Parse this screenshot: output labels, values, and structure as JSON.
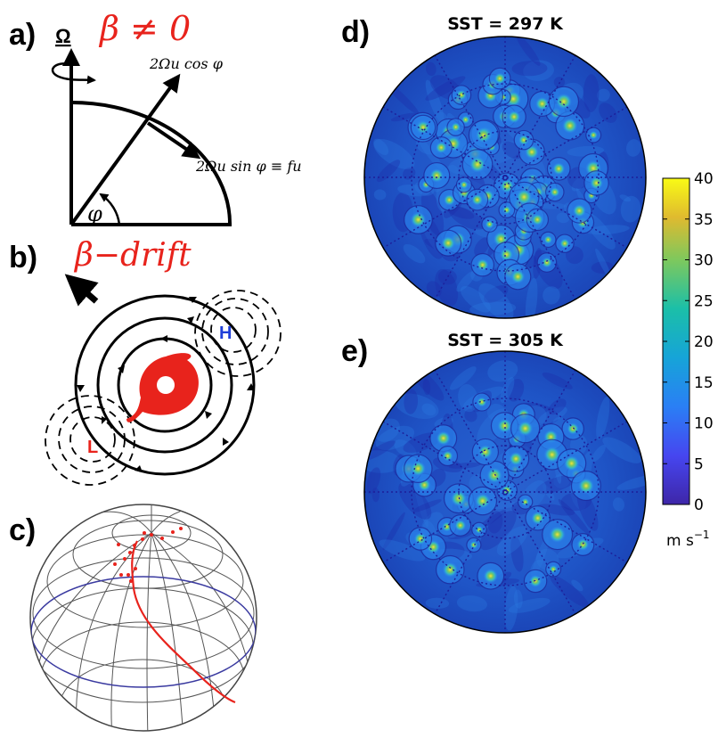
{
  "panels": {
    "a": {
      "label": "a)",
      "omega_symbol": "Ω",
      "title": "β ≠ 0",
      "cos_label": "2Ωu cos φ",
      "sin_label": "2Ωu sin φ ≡ fu",
      "phi_label": "φ"
    },
    "b": {
      "label": "b)",
      "title": "β−drift",
      "high_label": "H",
      "low_label": "L"
    },
    "c": {
      "label": "c)"
    },
    "d": {
      "label": "d)",
      "title": "SST = 297 K"
    },
    "e": {
      "label": "e)",
      "title": "SST = 305 K"
    }
  },
  "colorbar": {
    "ticks": [
      "40",
      "35",
      "30",
      "25",
      "20",
      "15",
      "10",
      "5",
      "0"
    ],
    "unit": "m s",
    "unit_exp": "−1"
  },
  "colors": {
    "red": "#e8231c",
    "blue_label": "#1f3fd8",
    "map_background": "#1f53c7",
    "map_dark": "#1d1f9a",
    "vortex": "#36b6c4",
    "vortex_core": "#f6e23a"
  }
}
